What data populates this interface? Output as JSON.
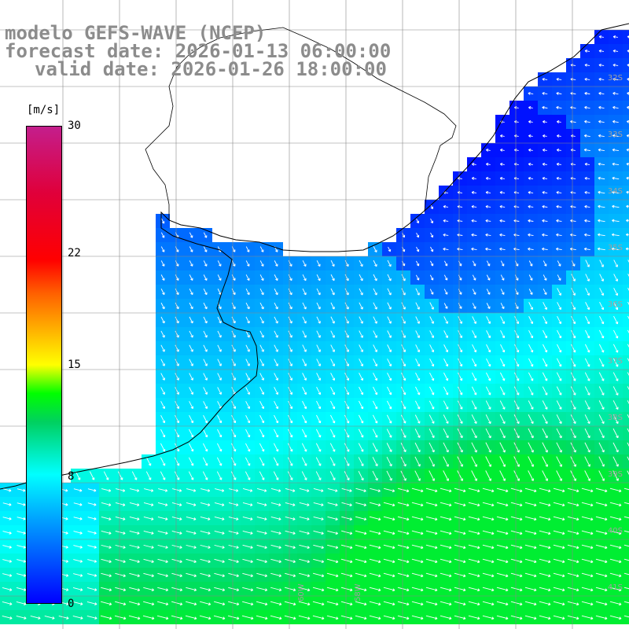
{
  "titles": {
    "line1": "modelo GEFS-WAVE (NCEP)",
    "line2": "forecast date: 2026-01-13 06:00:00",
    "line3": "valid date: 2026-01-26 18:00:00"
  },
  "colorbar": {
    "unit": "[m/s]",
    "ticks": [
      {
        "label": "30",
        "value": 30
      },
      {
        "label": "22",
        "value": 22
      },
      {
        "label": "15",
        "value": 15
      },
      {
        "label": "8",
        "value": 8
      },
      {
        "label": "0",
        "value": 0
      }
    ],
    "colors": [
      "#0000ff",
      "#00a6ff",
      "#00ffff",
      "#00ff00",
      "#ffff00",
      "#ff6000",
      "#ff0000",
      "#c41e8c"
    ]
  },
  "map": {
    "lat_labels": [
      "32S",
      "33S",
      "34S",
      "35S",
      "36S",
      "37S",
      "38S",
      "39S",
      "40S",
      "41S"
    ],
    "lon_labels": [
      "60W",
      "58W"
    ],
    "land_color": "#ffffff",
    "grid_color": "#888888",
    "arrow_color": "#ffffff"
  }
}
